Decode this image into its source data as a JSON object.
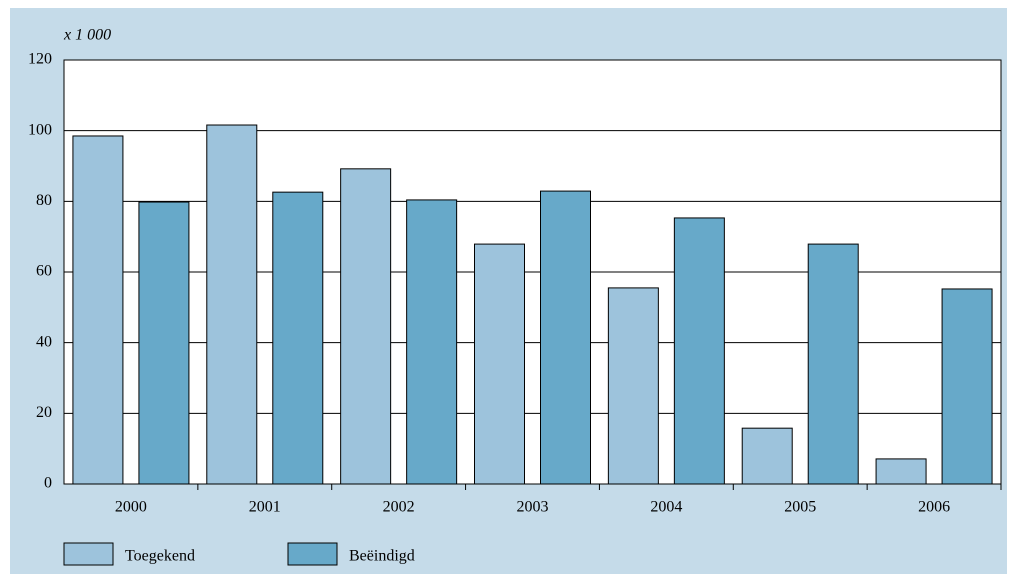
{
  "chart_data": {
    "type": "bar",
    "unit_label": "x 1 000",
    "categories": [
      "2000",
      "2001",
      "2002",
      "2003",
      "2004",
      "2005",
      "2006"
    ],
    "series": [
      {
        "name": "Toegekend",
        "color": "#9dc3dc",
        "values": [
          98.5,
          101.6,
          89.2,
          67.9,
          55.5,
          15.8,
          7.1
        ]
      },
      {
        "name": "Beëindigd",
        "color": "#67a9c9",
        "values": [
          79.8,
          82.6,
          80.4,
          82.9,
          75.3,
          67.9,
          55.2
        ]
      }
    ],
    "ylim": [
      0,
      120
    ],
    "yticks": [
      0,
      20,
      40,
      60,
      80,
      100,
      120
    ],
    "grid": true,
    "legend": "bottom"
  }
}
